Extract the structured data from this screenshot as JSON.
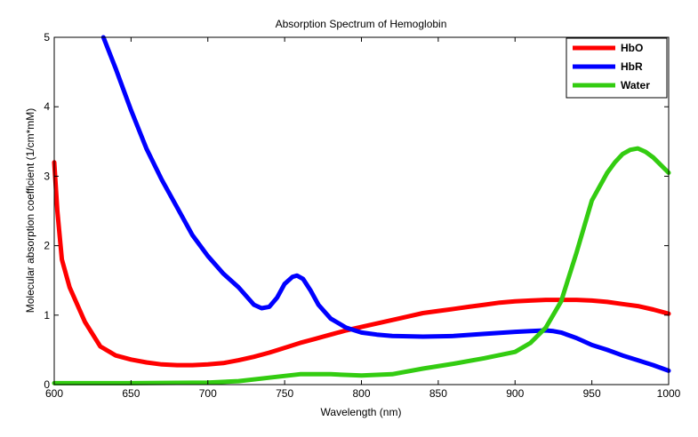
{
  "chart_data": {
    "type": "line",
    "title": "Absorption Spectrum of Hemoglobin",
    "xlabel": "Wavelength (nm)",
    "ylabel": "Molecular absorption coefficient (1/cm*mM)",
    "xlim": [
      600,
      1000
    ],
    "ylim": [
      0,
      5
    ],
    "xticks": [
      600,
      650,
      700,
      750,
      800,
      850,
      900,
      950,
      1000
    ],
    "yticks": [
      0,
      1,
      2,
      3,
      4,
      5
    ],
    "grid": false,
    "legend_position": "top-right",
    "series": [
      {
        "name": "HbO",
        "color": "#ff0000",
        "x": [
          600,
          602,
          605,
          610,
          620,
          630,
          640,
          650,
          660,
          670,
          680,
          690,
          700,
          710,
          720,
          730,
          740,
          750,
          760,
          770,
          780,
          790,
          800,
          810,
          820,
          830,
          840,
          850,
          860,
          870,
          880,
          890,
          900,
          910,
          920,
          930,
          940,
          950,
          960,
          970,
          980,
          990,
          1000
        ],
        "y": [
          3.2,
          2.5,
          1.8,
          1.4,
          0.9,
          0.55,
          0.42,
          0.36,
          0.32,
          0.29,
          0.28,
          0.28,
          0.29,
          0.31,
          0.35,
          0.4,
          0.46,
          0.53,
          0.6,
          0.66,
          0.72,
          0.78,
          0.83,
          0.88,
          0.93,
          0.98,
          1.03,
          1.06,
          1.09,
          1.12,
          1.15,
          1.18,
          1.2,
          1.21,
          1.22,
          1.22,
          1.22,
          1.21,
          1.19,
          1.16,
          1.13,
          1.08,
          1.02
        ]
      },
      {
        "name": "HbR",
        "color": "#0000ff",
        "x": [
          632,
          640,
          650,
          660,
          670,
          680,
          690,
          700,
          710,
          720,
          730,
          735,
          740,
          745,
          750,
          755,
          758,
          762,
          767,
          772,
          780,
          790,
          800,
          810,
          820,
          840,
          860,
          880,
          900,
          910,
          920,
          925,
          930,
          940,
          950,
          960,
          970,
          980,
          990,
          1000
        ],
        "y": [
          5.0,
          4.55,
          3.95,
          3.4,
          2.95,
          2.55,
          2.15,
          1.85,
          1.6,
          1.4,
          1.15,
          1.1,
          1.12,
          1.25,
          1.45,
          1.55,
          1.57,
          1.52,
          1.35,
          1.15,
          0.95,
          0.82,
          0.75,
          0.72,
          0.7,
          0.69,
          0.7,
          0.73,
          0.76,
          0.77,
          0.78,
          0.77,
          0.75,
          0.67,
          0.57,
          0.5,
          0.42,
          0.35,
          0.28,
          0.2
        ]
      },
      {
        "name": "Water",
        "color": "#33cc11",
        "x": [
          600,
          650,
          700,
          720,
          740,
          760,
          780,
          800,
          820,
          840,
          860,
          880,
          900,
          910,
          920,
          930,
          940,
          950,
          960,
          965,
          970,
          975,
          980,
          985,
          990,
          1000
        ],
        "y": [
          0.02,
          0.02,
          0.03,
          0.05,
          0.1,
          0.15,
          0.15,
          0.13,
          0.15,
          0.23,
          0.3,
          0.38,
          0.47,
          0.6,
          0.82,
          1.2,
          1.9,
          2.65,
          3.05,
          3.2,
          3.32,
          3.38,
          3.4,
          3.35,
          3.27,
          3.05
        ]
      }
    ]
  }
}
